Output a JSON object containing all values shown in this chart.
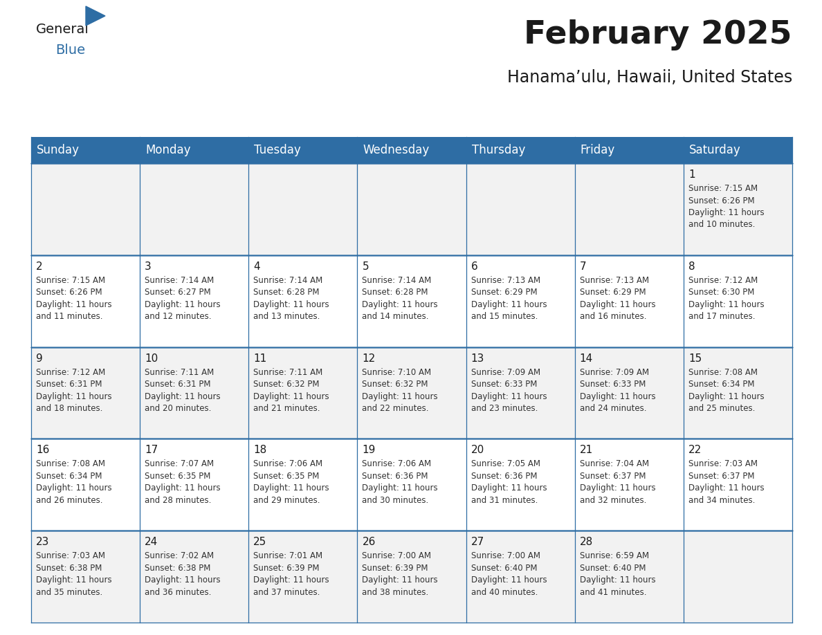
{
  "title": "February 2025",
  "subtitle": "Hanama’ulu, Hawaii, United States",
  "header_bg": "#2E6DA4",
  "header_text": "#FFFFFF",
  "cell_bg_odd": "#F2F2F2",
  "cell_bg_even": "#FFFFFF",
  "border_color": "#2E6DA4",
  "days_of_week": [
    "Sunday",
    "Monday",
    "Tuesday",
    "Wednesday",
    "Thursday",
    "Friday",
    "Saturday"
  ],
  "weeks": [
    [
      {
        "day": "",
        "info": ""
      },
      {
        "day": "",
        "info": ""
      },
      {
        "day": "",
        "info": ""
      },
      {
        "day": "",
        "info": ""
      },
      {
        "day": "",
        "info": ""
      },
      {
        "day": "",
        "info": ""
      },
      {
        "day": "1",
        "info": "Sunrise: 7:15 AM\nSunset: 6:26 PM\nDaylight: 11 hours\nand 10 minutes."
      }
    ],
    [
      {
        "day": "2",
        "info": "Sunrise: 7:15 AM\nSunset: 6:26 PM\nDaylight: 11 hours\nand 11 minutes."
      },
      {
        "day": "3",
        "info": "Sunrise: 7:14 AM\nSunset: 6:27 PM\nDaylight: 11 hours\nand 12 minutes."
      },
      {
        "day": "4",
        "info": "Sunrise: 7:14 AM\nSunset: 6:28 PM\nDaylight: 11 hours\nand 13 minutes."
      },
      {
        "day": "5",
        "info": "Sunrise: 7:14 AM\nSunset: 6:28 PM\nDaylight: 11 hours\nand 14 minutes."
      },
      {
        "day": "6",
        "info": "Sunrise: 7:13 AM\nSunset: 6:29 PM\nDaylight: 11 hours\nand 15 minutes."
      },
      {
        "day": "7",
        "info": "Sunrise: 7:13 AM\nSunset: 6:29 PM\nDaylight: 11 hours\nand 16 minutes."
      },
      {
        "day": "8",
        "info": "Sunrise: 7:12 AM\nSunset: 6:30 PM\nDaylight: 11 hours\nand 17 minutes."
      }
    ],
    [
      {
        "day": "9",
        "info": "Sunrise: 7:12 AM\nSunset: 6:31 PM\nDaylight: 11 hours\nand 18 minutes."
      },
      {
        "day": "10",
        "info": "Sunrise: 7:11 AM\nSunset: 6:31 PM\nDaylight: 11 hours\nand 20 minutes."
      },
      {
        "day": "11",
        "info": "Sunrise: 7:11 AM\nSunset: 6:32 PM\nDaylight: 11 hours\nand 21 minutes."
      },
      {
        "day": "12",
        "info": "Sunrise: 7:10 AM\nSunset: 6:32 PM\nDaylight: 11 hours\nand 22 minutes."
      },
      {
        "day": "13",
        "info": "Sunrise: 7:09 AM\nSunset: 6:33 PM\nDaylight: 11 hours\nand 23 minutes."
      },
      {
        "day": "14",
        "info": "Sunrise: 7:09 AM\nSunset: 6:33 PM\nDaylight: 11 hours\nand 24 minutes."
      },
      {
        "day": "15",
        "info": "Sunrise: 7:08 AM\nSunset: 6:34 PM\nDaylight: 11 hours\nand 25 minutes."
      }
    ],
    [
      {
        "day": "16",
        "info": "Sunrise: 7:08 AM\nSunset: 6:34 PM\nDaylight: 11 hours\nand 26 minutes."
      },
      {
        "day": "17",
        "info": "Sunrise: 7:07 AM\nSunset: 6:35 PM\nDaylight: 11 hours\nand 28 minutes."
      },
      {
        "day": "18",
        "info": "Sunrise: 7:06 AM\nSunset: 6:35 PM\nDaylight: 11 hours\nand 29 minutes."
      },
      {
        "day": "19",
        "info": "Sunrise: 7:06 AM\nSunset: 6:36 PM\nDaylight: 11 hours\nand 30 minutes."
      },
      {
        "day": "20",
        "info": "Sunrise: 7:05 AM\nSunset: 6:36 PM\nDaylight: 11 hours\nand 31 minutes."
      },
      {
        "day": "21",
        "info": "Sunrise: 7:04 AM\nSunset: 6:37 PM\nDaylight: 11 hours\nand 32 minutes."
      },
      {
        "day": "22",
        "info": "Sunrise: 7:03 AM\nSunset: 6:37 PM\nDaylight: 11 hours\nand 34 minutes."
      }
    ],
    [
      {
        "day": "23",
        "info": "Sunrise: 7:03 AM\nSunset: 6:38 PM\nDaylight: 11 hours\nand 35 minutes."
      },
      {
        "day": "24",
        "info": "Sunrise: 7:02 AM\nSunset: 6:38 PM\nDaylight: 11 hours\nand 36 minutes."
      },
      {
        "day": "25",
        "info": "Sunrise: 7:01 AM\nSunset: 6:39 PM\nDaylight: 11 hours\nand 37 minutes."
      },
      {
        "day": "26",
        "info": "Sunrise: 7:00 AM\nSunset: 6:39 PM\nDaylight: 11 hours\nand 38 minutes."
      },
      {
        "day": "27",
        "info": "Sunrise: 7:00 AM\nSunset: 6:40 PM\nDaylight: 11 hours\nand 40 minutes."
      },
      {
        "day": "28",
        "info": "Sunrise: 6:59 AM\nSunset: 6:40 PM\nDaylight: 11 hours\nand 41 minutes."
      },
      {
        "day": "",
        "info": ""
      }
    ]
  ],
  "logo_general_color": "#1a1a1a",
  "logo_blue_color": "#2E6DA4",
  "title_fontsize": 34,
  "subtitle_fontsize": 17,
  "header_fontsize": 12,
  "day_num_fontsize": 11,
  "info_fontsize": 8.5
}
